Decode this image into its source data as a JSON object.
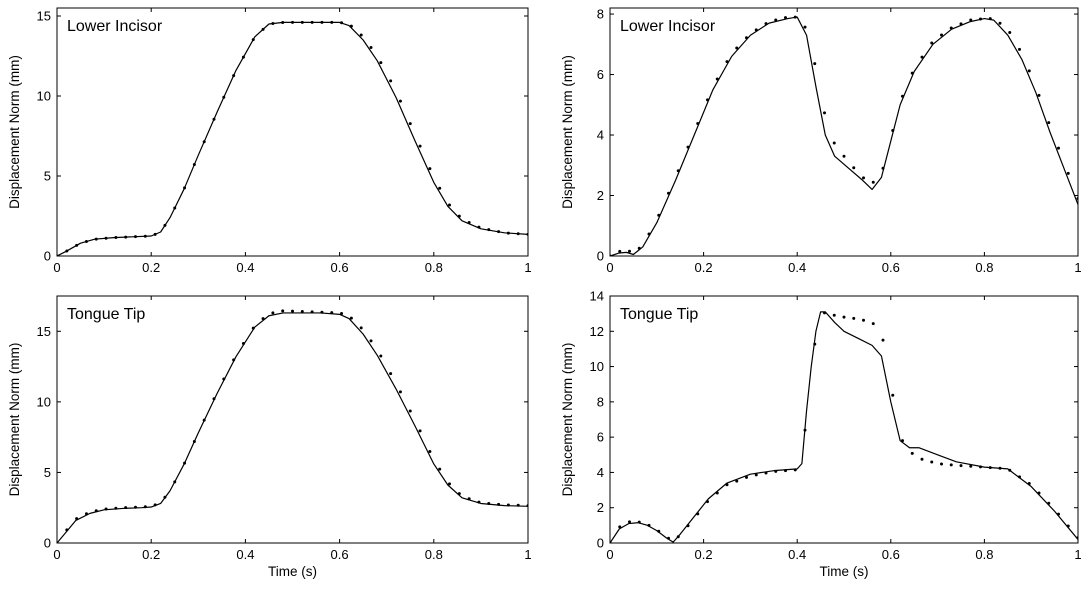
{
  "chart_data": [
    {
      "type": "line",
      "panel": "top-left",
      "title": "Lower Incisor",
      "xlabel": "",
      "ylabel": "Displacement Norm (mm)",
      "xlim": [
        0,
        1
      ],
      "ylim": [
        0,
        15.5
      ],
      "xticks": [
        0,
        0.2,
        0.4,
        0.6,
        0.8,
        1
      ],
      "xtick_labels": [
        "0",
        "0.2",
        "0.4",
        "0.6",
        "0.8",
        "1"
      ],
      "yticks": [
        0,
        5,
        10,
        15
      ],
      "ytick_labels": [
        "0",
        "5",
        "10",
        "15"
      ],
      "grid": false,
      "series": [
        {
          "style": "solid",
          "x": [
            0,
            0.02,
            0.05,
            0.08,
            0.12,
            0.16,
            0.2,
            0.22,
            0.24,
            0.27,
            0.3,
            0.34,
            0.38,
            0.42,
            0.45,
            0.48,
            0.52,
            0.56,
            0.6,
            0.62,
            0.65,
            0.68,
            0.72,
            0.76,
            0.8,
            0.83,
            0.86,
            0.9,
            0.95,
            1
          ],
          "y": [
            0,
            0.3,
            0.8,
            1.05,
            1.15,
            1.2,
            1.25,
            1.5,
            2.4,
            4.2,
            6.3,
            9.0,
            11.6,
            13.7,
            14.5,
            14.6,
            14.6,
            14.6,
            14.6,
            14.4,
            13.5,
            12.2,
            9.9,
            7.2,
            4.6,
            3.1,
            2.2,
            1.7,
            1.45,
            1.35
          ]
        },
        {
          "style": "dotted",
          "x": [
            0,
            0.02,
            0.05,
            0.08,
            0.12,
            0.16,
            0.2,
            0.22,
            0.24,
            0.27,
            0.3,
            0.34,
            0.38,
            0.42,
            0.45,
            0.48,
            0.52,
            0.56,
            0.6,
            0.62,
            0.65,
            0.68,
            0.72,
            0.76,
            0.8,
            0.83,
            0.86,
            0.9,
            0.95,
            1
          ],
          "y": [
            0,
            0.3,
            0.8,
            1.05,
            1.15,
            1.2,
            1.25,
            1.5,
            2.4,
            4.2,
            6.3,
            9.0,
            11.6,
            13.7,
            14.5,
            14.6,
            14.6,
            14.6,
            14.6,
            14.5,
            13.7,
            12.5,
            10.3,
            7.6,
            4.9,
            3.3,
            2.3,
            1.75,
            1.45,
            1.35
          ]
        }
      ]
    },
    {
      "type": "line",
      "panel": "top-right",
      "title": "Lower Incisor",
      "xlabel": "",
      "ylabel": "Displacement Norm (mm)",
      "xlim": [
        0,
        1
      ],
      "ylim": [
        0,
        8.2
      ],
      "xticks": [
        0,
        0.2,
        0.4,
        0.6,
        0.8,
        1
      ],
      "xtick_labels": [
        "0",
        "0.2",
        "0.4",
        "0.6",
        "0.8",
        "1"
      ],
      "yticks": [
        0,
        2,
        4,
        6,
        8
      ],
      "ytick_labels": [
        "0",
        "2",
        "4",
        "6",
        "8"
      ],
      "grid": false,
      "series": [
        {
          "style": "solid",
          "x": [
            0,
            0.02,
            0.035,
            0.05,
            0.07,
            0.1,
            0.14,
            0.18,
            0.22,
            0.26,
            0.3,
            0.34,
            0.38,
            0.4,
            0.42,
            0.44,
            0.46,
            0.48,
            0.51,
            0.54,
            0.56,
            0.58,
            0.6,
            0.62,
            0.65,
            0.69,
            0.73,
            0.77,
            0.8,
            0.82,
            0.85,
            0.88,
            0.91,
            0.94,
            0.97,
            1
          ],
          "y": [
            0,
            0.1,
            0.12,
            0.05,
            0.3,
            1.1,
            2.5,
            4.0,
            5.5,
            6.6,
            7.3,
            7.7,
            7.85,
            7.9,
            7.3,
            5.6,
            4.0,
            3.3,
            2.9,
            2.5,
            2.2,
            2.6,
            3.8,
            5.0,
            6.1,
            7.0,
            7.5,
            7.75,
            7.85,
            7.8,
            7.3,
            6.5,
            5.4,
            4.1,
            2.9,
            1.7
          ]
        },
        {
          "style": "dotted",
          "x": [
            0,
            0.02,
            0.035,
            0.05,
            0.07,
            0.1,
            0.14,
            0.18,
            0.22,
            0.26,
            0.3,
            0.34,
            0.38,
            0.4,
            0.42,
            0.44,
            0.46,
            0.48,
            0.51,
            0.54,
            0.56,
            0.58,
            0.6,
            0.62,
            0.65,
            0.69,
            0.73,
            0.77,
            0.8,
            0.82,
            0.85,
            0.88,
            0.91,
            0.94,
            0.97,
            1
          ],
          "y": [
            0,
            0.15,
            0.2,
            0.1,
            0.35,
            1.2,
            2.6,
            4.1,
            5.6,
            6.7,
            7.35,
            7.75,
            7.9,
            7.9,
            7.5,
            6.2,
            4.6,
            3.7,
            3.1,
            2.6,
            2.4,
            2.7,
            3.9,
            5.1,
            6.2,
            7.1,
            7.55,
            7.8,
            7.85,
            7.85,
            7.5,
            6.7,
            5.6,
            4.3,
            3.1,
            1.9
          ]
        }
      ]
    },
    {
      "type": "line",
      "panel": "bottom-left",
      "title": "Tongue Tip",
      "xlabel": "Time (s)",
      "ylabel": "Displacement Norm (mm)",
      "xlim": [
        0,
        1
      ],
      "ylim": [
        0,
        17.5
      ],
      "xticks": [
        0,
        0.2,
        0.4,
        0.6,
        0.8,
        1
      ],
      "xtick_labels": [
        "0",
        "0.2",
        "0.4",
        "0.6",
        "0.8",
        "1"
      ],
      "yticks": [
        0,
        5,
        10,
        15
      ],
      "ytick_labels": [
        "0",
        "5",
        "10",
        "15"
      ],
      "grid": false,
      "series": [
        {
          "style": "solid",
          "x": [
            0,
            0.02,
            0.04,
            0.07,
            0.1,
            0.14,
            0.18,
            0.2,
            0.22,
            0.24,
            0.27,
            0.3,
            0.34,
            0.38,
            0.42,
            0.45,
            0.48,
            0.52,
            0.56,
            0.6,
            0.62,
            0.65,
            0.68,
            0.72,
            0.76,
            0.8,
            0.83,
            0.86,
            0.9,
            0.95,
            1
          ],
          "y": [
            0,
            0.8,
            1.6,
            2.1,
            2.35,
            2.45,
            2.5,
            2.55,
            2.8,
            3.7,
            5.6,
            7.8,
            10.6,
            13.2,
            15.3,
            16.1,
            16.3,
            16.3,
            16.3,
            16.2,
            15.9,
            14.8,
            13.3,
            10.9,
            8.3,
            5.6,
            4.1,
            3.2,
            2.8,
            2.65,
            2.6
          ]
        },
        {
          "style": "dotted",
          "x": [
            0,
            0.02,
            0.04,
            0.07,
            0.1,
            0.14,
            0.18,
            0.2,
            0.22,
            0.24,
            0.27,
            0.3,
            0.34,
            0.38,
            0.42,
            0.45,
            0.48,
            0.52,
            0.56,
            0.6,
            0.62,
            0.65,
            0.68,
            0.72,
            0.76,
            0.8,
            0.83,
            0.86,
            0.9,
            0.95,
            1
          ],
          "y": [
            0,
            0.9,
            1.7,
            2.2,
            2.4,
            2.5,
            2.55,
            2.6,
            2.85,
            3.7,
            5.6,
            7.8,
            10.7,
            13.3,
            15.4,
            16.25,
            16.45,
            16.4,
            16.35,
            16.3,
            16.1,
            15.1,
            13.7,
            11.3,
            8.7,
            5.9,
            4.3,
            3.3,
            2.85,
            2.7,
            2.65
          ]
        }
      ]
    },
    {
      "type": "line",
      "panel": "bottom-right",
      "title": "Tongue Tip",
      "xlabel": "Time (s)",
      "ylabel": "Displacement Norm (mm)",
      "xlim": [
        0,
        1
      ],
      "ylim": [
        0,
        14
      ],
      "xticks": [
        0,
        0.2,
        0.4,
        0.6,
        0.8,
        1
      ],
      "xtick_labels": [
        "0",
        "0.2",
        "0.4",
        "0.6",
        "0.8",
        "1"
      ],
      "yticks": [
        0,
        2,
        4,
        6,
        8,
        10,
        12,
        14
      ],
      "ytick_labels": [
        "0",
        "2",
        "4",
        "6",
        "8",
        "10",
        "12",
        "14"
      ],
      "grid": false,
      "series": [
        {
          "style": "solid",
          "x": [
            0,
            0.02,
            0.04,
            0.06,
            0.08,
            0.1,
            0.12,
            0.135,
            0.15,
            0.18,
            0.21,
            0.25,
            0.3,
            0.35,
            0.4,
            0.41,
            0.42,
            0.43,
            0.44,
            0.45,
            0.46,
            0.48,
            0.5,
            0.53,
            0.56,
            0.58,
            0.6,
            0.62,
            0.64,
            0.66,
            0.7,
            0.74,
            0.8,
            0.85,
            0.9,
            0.95,
            1
          ],
          "y": [
            0,
            0.8,
            1.1,
            1.15,
            1.0,
            0.7,
            0.3,
            0.05,
            0.5,
            1.5,
            2.5,
            3.4,
            3.9,
            4.1,
            4.2,
            4.5,
            7.5,
            10.0,
            12.0,
            13.1,
            13.1,
            12.5,
            12.0,
            11.6,
            11.2,
            10.6,
            8.0,
            5.8,
            5.4,
            5.4,
            5.0,
            4.6,
            4.3,
            4.2,
            3.2,
            1.8,
            0.2
          ]
        },
        {
          "style": "dotted",
          "x": [
            0,
            0.02,
            0.04,
            0.06,
            0.08,
            0.1,
            0.12,
            0.135,
            0.15,
            0.18,
            0.21,
            0.25,
            0.3,
            0.35,
            0.4,
            0.41,
            0.42,
            0.43,
            0.44,
            0.45,
            0.46,
            0.48,
            0.5,
            0.53,
            0.56,
            0.58,
            0.6,
            0.62,
            0.64,
            0.66,
            0.7,
            0.74,
            0.8,
            0.85,
            0.9,
            0.95,
            1
          ],
          "y": [
            0,
            0.9,
            1.2,
            1.2,
            1.05,
            0.75,
            0.35,
            0.1,
            0.45,
            1.4,
            2.4,
            3.3,
            3.8,
            4.05,
            4.15,
            4.6,
            7.3,
            9.7,
            11.8,
            13.0,
            13.05,
            12.9,
            12.8,
            12.7,
            12.5,
            12.0,
            9.0,
            6.0,
            5.2,
            4.8,
            4.5,
            4.4,
            4.3,
            4.2,
            3.3,
            1.9,
            0.3
          ]
        }
      ]
    }
  ]
}
